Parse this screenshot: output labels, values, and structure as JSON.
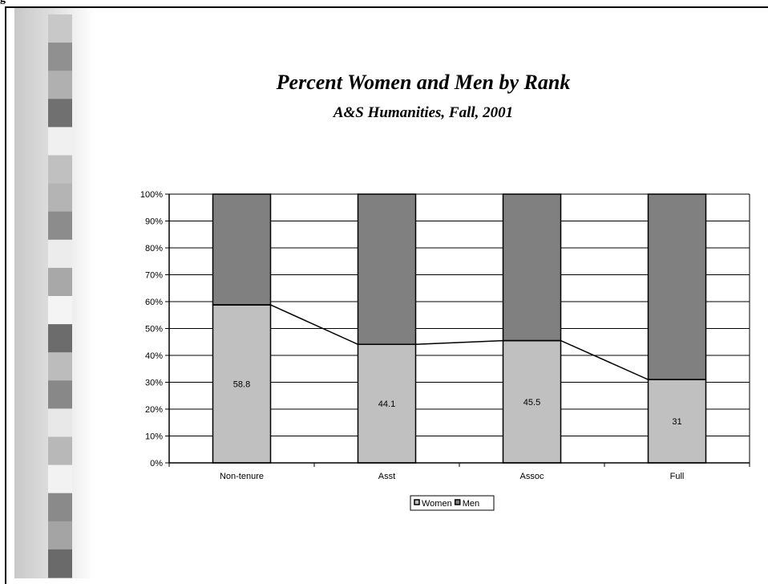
{
  "header_fragment": "g",
  "chart_data": {
    "type": "bar",
    "stacked": true,
    "title": "Percent Women and Men by Rank",
    "subtitle": "A&S Humanities, Fall, 2001",
    "categories": [
      "Non-tenure",
      "Asst",
      "Assoc",
      "Full"
    ],
    "series": [
      {
        "name": "Women",
        "values": [
          58.8,
          44.1,
          45.5,
          31
        ],
        "color": "#c0c0c0",
        "data_labels": [
          "58.8",
          "44.1",
          "45.5",
          "31"
        ]
      },
      {
        "name": "Men",
        "values": [
          41.2,
          55.9,
          54.5,
          69
        ],
        "color": "#808080"
      }
    ],
    "overlay_line": {
      "series": "Women",
      "color": "#000000"
    },
    "yticks": [
      "0%",
      "10%",
      "20%",
      "30%",
      "40%",
      "50%",
      "60%",
      "70%",
      "80%",
      "90%",
      "100%"
    ],
    "ylim": [
      0,
      100
    ],
    "grid": true,
    "legend_position": "bottom"
  },
  "decoration": {
    "sidebar_blocks": [
      "#c8c8c8",
      "#909090",
      "#b0b0b0",
      "#707070",
      "#f0f0f0",
      "#c0c0c0",
      "#b4b4b4",
      "#8c8c8c",
      "#ececec",
      "#a8a8a8",
      "#f4f4f4",
      "#6c6c6c",
      "#bcbcbc",
      "#888888",
      "#e8e8e8",
      "#b8b8b8",
      "#f2f2f2",
      "#8a8a8a",
      "#a4a4a4",
      "#6a6a6a"
    ]
  }
}
